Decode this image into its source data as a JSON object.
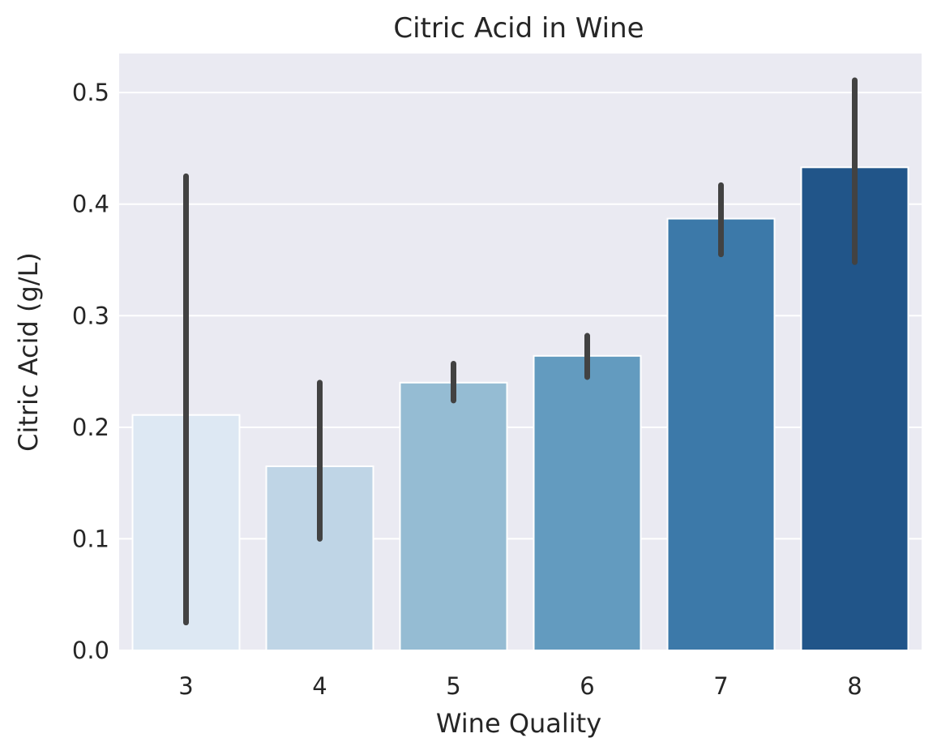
{
  "chart_data": {
    "type": "bar",
    "title": "Citric Acid in Wine",
    "xlabel": "Wine Quality",
    "ylabel": "Citric Acid (g/L)",
    "categories": [
      "3",
      "4",
      "5",
      "6",
      "7",
      "8"
    ],
    "values": [
      0.211,
      0.165,
      0.24,
      0.264,
      0.387,
      0.433
    ],
    "error_bars": [
      [
        0.025,
        0.425
      ],
      [
        0.1,
        0.24
      ],
      [
        0.224,
        0.257
      ],
      [
        0.245,
        0.282
      ],
      [
        0.355,
        0.417
      ],
      [
        0.348,
        0.511
      ]
    ],
    "bar_colors": [
      "#dde8f3",
      "#bfd5e6",
      "#95bcd3",
      "#639bbf",
      "#3c79a9",
      "#215589"
    ],
    "error_bar_color": "#424242",
    "background_color": "#eaeaf2",
    "grid": true,
    "ylim": [
      0,
      0.535
    ],
    "yticks": [
      "0.0",
      "0.1",
      "0.2",
      "0.3",
      "0.4",
      "0.5"
    ]
  }
}
